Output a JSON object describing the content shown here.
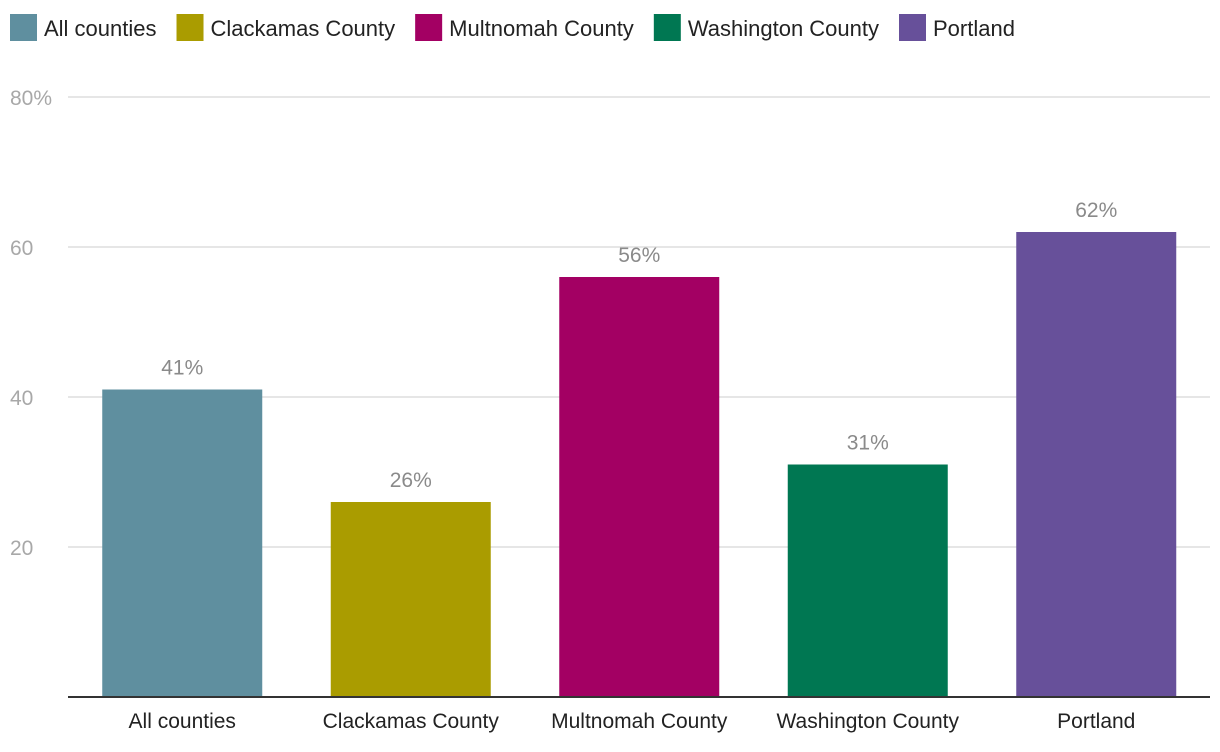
{
  "chart_data": {
    "type": "bar",
    "title": "",
    "xlabel": "",
    "ylabel": "",
    "categories": [
      "All counties",
      "Clackamas County",
      "Multnomah County",
      "Washington County",
      "Portland"
    ],
    "values": [
      41,
      26,
      56,
      31,
      62
    ],
    "value_labels": [
      "41%",
      "26%",
      "56%",
      "31%",
      "62%"
    ],
    "colors": [
      "#5f8f9f",
      "#aa9c00",
      "#a30063",
      "#007752",
      "#67509a"
    ],
    "legend": {
      "placement": "top-left",
      "entries": [
        "All counties",
        "Clackamas County",
        "Multnomah County",
        "Washington County",
        "Portland"
      ]
    },
    "ylim": [
      0,
      80
    ],
    "yticks": [
      20,
      40,
      60,
      80
    ],
    "ytick_labels": [
      "20",
      "40",
      "60",
      "80%"
    ],
    "grid": true
  }
}
